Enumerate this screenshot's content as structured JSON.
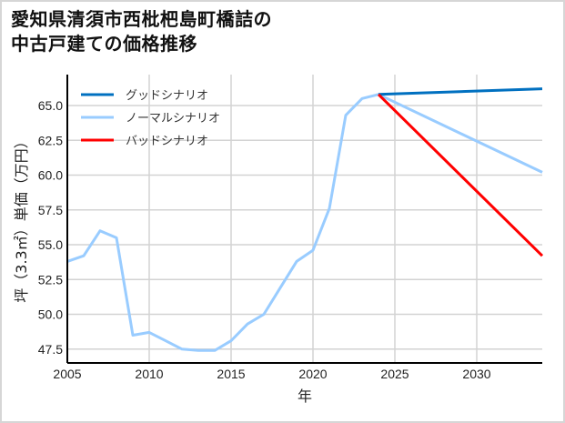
{
  "title": {
    "line1": "愛知県清須市西枇杷島町橋詰の",
    "line2": "中古戸建ての価格推移"
  },
  "axes": {
    "xlabel": "年",
    "ylabel": "坪（3.3㎡）単価（万円）",
    "x_ticks": [
      "2005",
      "2010",
      "2015",
      "2020",
      "2025",
      "2030"
    ],
    "y_ticks": [
      "65.0",
      "62.5",
      "60.0",
      "57.5",
      "55.0",
      "52.5",
      "50.0",
      "47.5"
    ]
  },
  "legend": [
    {
      "label": "グッドシナリオ",
      "color": "#0070c0"
    },
    {
      "label": "ノーマルシナリオ",
      "color": "#99ccff"
    },
    {
      "label": "バッドシナリオ",
      "color": "#ff0000"
    }
  ],
  "chart_data": {
    "type": "line",
    "title": "愛知県清須市西枇杷島町橋詰の中古戸建ての価格推移",
    "xlabel": "年",
    "ylabel": "坪（3.3㎡）単価（万円）",
    "xlim": [
      2005,
      2034
    ],
    "ylim": [
      46.5,
      67.2
    ],
    "grid": true,
    "legend_position": "upper left",
    "series": [
      {
        "name": "ノーマルシナリオ",
        "color": "#99ccff",
        "x": [
          2005,
          2006,
          2007,
          2008,
          2009,
          2010,
          2011,
          2012,
          2013,
          2014,
          2015,
          2016,
          2017,
          2018,
          2019,
          2020,
          2021,
          2022,
          2023,
          2024,
          2034
        ],
        "values": [
          53.8,
          54.2,
          56.0,
          55.5,
          48.5,
          48.7,
          48.1,
          47.5,
          47.4,
          47.4,
          48.1,
          49.3,
          50.0,
          51.9,
          53.8,
          54.6,
          57.6,
          64.3,
          65.5,
          65.8,
          60.2
        ]
      },
      {
        "name": "グッドシナリオ",
        "color": "#0070c0",
        "x": [
          2024,
          2034
        ],
        "values": [
          65.8,
          66.2
        ]
      },
      {
        "name": "バッドシナリオ",
        "color": "#ff0000",
        "x": [
          2024,
          2034
        ],
        "values": [
          65.8,
          54.2
        ]
      }
    ]
  }
}
